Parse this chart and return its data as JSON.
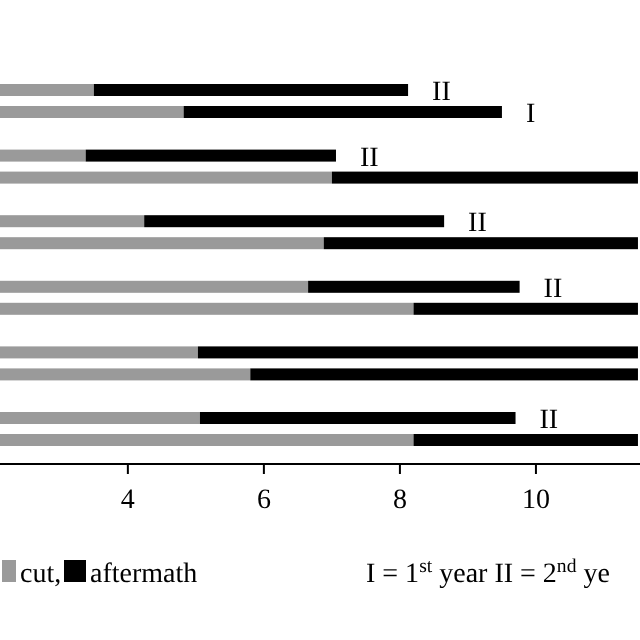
{
  "chart_data": {
    "type": "bar",
    "orientation": "horizontal",
    "stacked": true,
    "categories": [
      null,
      null,
      null,
      null,
      null,
      null,
      null,
      null,
      null,
      null,
      null,
      null
    ],
    "series": [
      {
        "name": "cut,",
        "color": "#9a9a9a",
        "values": [
          3.5,
          4.82,
          3.38,
          7.0,
          4.24,
          6.88,
          6.65,
          8.2,
          5.03,
          5.8,
          5.06,
          8.2
        ]
      },
      {
        "name": "aftermath",
        "color": "#000000",
        "values": [
          4.62,
          4.68,
          3.68,
          4.5,
          4.41,
          4.62,
          3.11,
          3.3,
          6.47,
          5.7,
          4.64,
          3.3
        ],
        "value_labels": [
          "II",
          "I",
          "II",
          null,
          "II",
          null,
          "II",
          null,
          null,
          null,
          "II",
          null
        ]
      }
    ],
    "xlim": [
      2.12,
      11.53
    ],
    "xticks": [
      4,
      6,
      8,
      10
    ],
    "legend": "bottom",
    "annotations": [
      "I = 1$^{st}$ year   II = 2$^{nd}$ ye"
    ]
  }
}
